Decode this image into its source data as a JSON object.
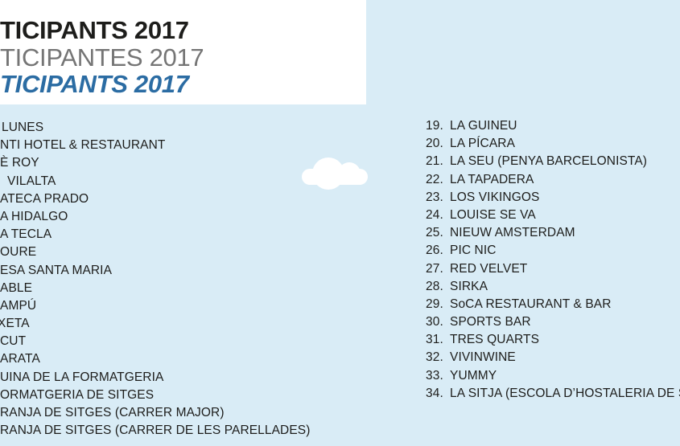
{
  "colors": {
    "background": "#d9ecf6",
    "panel": "#ffffff",
    "text": "#1d1d1b",
    "title_gray": "#757575",
    "title_blue": "#2b6ca3"
  },
  "header": {
    "line1": "TICIPANTS 2017",
    "line2": "TICIPANTES 2017",
    "line3": "TICIPANTS 2017"
  },
  "decor": {
    "cloud_icon": "cloud"
  },
  "participants": {
    "left_column": [
      "LUNES",
      "NTI HOTEL & RESTAURANT",
      "È ROY",
      "VILALTA",
      "ATECA PRADO",
      "A HIDALGO",
      "A TECLA",
      "OURE",
      "ESA SANTA MARIA",
      "ABLE",
      "AMPÚ",
      "XETA",
      "CUT",
      "ARATA",
      "UINA DE LA FORMATGERIA",
      "ORMATGERIA DE SITGES",
      "RANJA DE SITGES (CARRER MAJOR)",
      "RANJA DE SITGES (CARRER DE LES PARELLADES)"
    ],
    "right_column": [
      {
        "number": "19.",
        "name": "LA GUINEU"
      },
      {
        "number": "20.",
        "name": "LA PÍCARA"
      },
      {
        "number": "21.",
        "name": "LA SEU (PENYA BARCELONISTA)"
      },
      {
        "number": "22.",
        "name": "LA TAPADERA"
      },
      {
        "number": "23.",
        "name": "LOS VIKINGOS"
      },
      {
        "number": "24.",
        "name": "LOUISE SE VA"
      },
      {
        "number": "25.",
        "name": "NIEUW AMSTERDAM"
      },
      {
        "number": "26.",
        "name": "PIC NIC"
      },
      {
        "number": "27.",
        "name": "RED VELVET"
      },
      {
        "number": "28.",
        "name": "SIRKA"
      },
      {
        "number": "29.",
        "name": "SoCA RESTAURANT & BAR"
      },
      {
        "number": "30.",
        "name": "SPORTS BAR"
      },
      {
        "number": "31.",
        "name": "TRES QUARTS"
      },
      {
        "number": "32.",
        "name": "VIVINWINE"
      },
      {
        "number": "33.",
        "name": "YUMMY"
      },
      {
        "number": "34.",
        "name": "LA SITJA (ESCOLA D’HOSTALERIA DE S"
      }
    ]
  }
}
